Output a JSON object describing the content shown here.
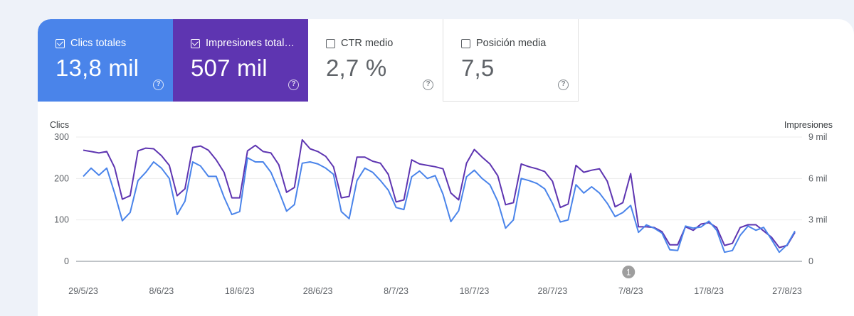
{
  "metrics": [
    {
      "label": "Clics totales",
      "value": "13,8 mil",
      "checked": true,
      "color": "#4a84ea"
    },
    {
      "label": "Impresiones total…",
      "value": "507 mil",
      "checked": true,
      "color": "#5e35b1"
    },
    {
      "label": "CTR medio",
      "value": "2,7 %",
      "checked": false
    },
    {
      "label": "Posición media",
      "value": "7,5",
      "checked": false
    }
  ],
  "help_glyph": "?",
  "annotation": {
    "label": "1",
    "date": "7/8/23"
  },
  "chart_data": {
    "type": "line",
    "left_axis": {
      "label": "Clics",
      "ticks": [
        0,
        100,
        200,
        300
      ],
      "tick_labels": [
        "0",
        "100",
        "200",
        "300"
      ],
      "range": [
        0,
        300
      ]
    },
    "right_axis": {
      "label": "Impresiones",
      "ticks": [
        0,
        3000,
        6000,
        9000
      ],
      "tick_labels": [
        "0",
        "3 mil",
        "6 mil",
        "9 mil"
      ],
      "range": [
        0,
        9000
      ]
    },
    "x_labels": [
      "29/5/23",
      "8/6/23",
      "18/6/23",
      "28/6/23",
      "8/7/23",
      "18/7/23",
      "28/7/23",
      "7/8/23",
      "17/8/23",
      "27/8/23"
    ],
    "grid": true,
    "series": [
      {
        "name": "Clics",
        "axis": "left",
        "color": "#4a84ea",
        "values": [
          205,
          225,
          208,
          225,
          165,
          98,
          118,
          195,
          215,
          240,
          225,
          200,
          113,
          145,
          240,
          230,
          205,
          205,
          155,
          113,
          120,
          250,
          240,
          240,
          215,
          170,
          121,
          137,
          237,
          240,
          235,
          225,
          210,
          120,
          103,
          195,
          225,
          215,
          195,
          172,
          130,
          125,
          204,
          218,
          200,
          207,
          162,
          96,
          122,
          204,
          220,
          200,
          185,
          145,
          80,
          100,
          200,
          195,
          188,
          175,
          140,
          95,
          100,
          185,
          165,
          180,
          165,
          140,
          108,
          118,
          135,
          70,
          88,
          80,
          68,
          28,
          26,
          85,
          80,
          83,
          97,
          75,
          22,
          26,
          63,
          85,
          75,
          82,
          53,
          22,
          40,
          73
        ]
      },
      {
        "name": "Impresiones",
        "axis": "right",
        "color": "#5e35b1",
        "values": [
          8050,
          7950,
          7850,
          7950,
          6800,
          4500,
          4750,
          8000,
          8200,
          8150,
          7650,
          6950,
          4750,
          5250,
          8250,
          8350,
          8050,
          7350,
          6450,
          4600,
          4600,
          8000,
          8400,
          7950,
          7850,
          7000,
          5000,
          5350,
          8800,
          8150,
          7950,
          7600,
          6850,
          4600,
          4700,
          7550,
          7550,
          7250,
          7100,
          6300,
          4300,
          4450,
          7350,
          7050,
          6950,
          6850,
          6700,
          4950,
          4450,
          7100,
          8100,
          7550,
          7050,
          6200,
          4100,
          4250,
          7050,
          6850,
          6700,
          6500,
          5800,
          3900,
          4150,
          6950,
          6450,
          6600,
          6700,
          5800,
          3950,
          4250,
          6350,
          2500,
          2500,
          2450,
          2150,
          1200,
          1200,
          2500,
          2250,
          2700,
          2800,
          2450,
          1150,
          1300,
          2450,
          2650,
          2650,
          2200,
          1750,
          1000,
          1150,
          2100
        ]
      }
    ]
  }
}
